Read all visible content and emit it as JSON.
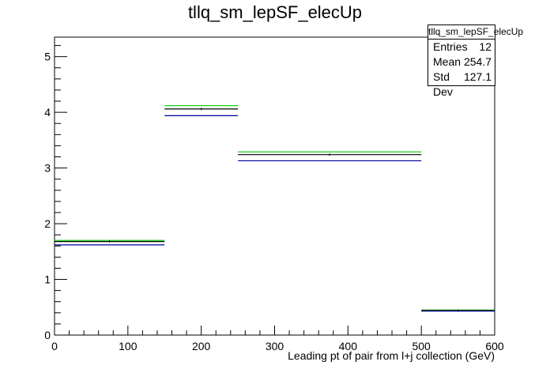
{
  "chart_data": {
    "type": "histogram",
    "title": "tllq_sm_lepSF_elecUp",
    "xlabel": "Leading pt of pair from l+j collection (GeV)",
    "ylabel": "",
    "xlim": [
      0,
      600
    ],
    "ylim": [
      0,
      5.35
    ],
    "x_ticks": [
      0,
      100,
      200,
      300,
      400,
      500,
      600
    ],
    "y_ticks": [
      0,
      1,
      2,
      3,
      4,
      5
    ],
    "bins": [
      [
        0,
        150
      ],
      [
        150,
        250
      ],
      [
        250,
        500
      ],
      [
        500,
        600
      ]
    ],
    "series": [
      {
        "color": "#00cc00",
        "values": [
          1.7,
          4.12,
          3.29,
          0.45
        ]
      },
      {
        "color": "#000000",
        "values": [
          1.68,
          4.06,
          3.24,
          0.44
        ]
      },
      {
        "color": "#000099",
        "values": [
          1.62,
          3.94,
          3.13,
          0.43
        ]
      }
    ],
    "legend": "none",
    "grid": false
  },
  "stats": {
    "name": "tllq_sm_lepSF_elecUp",
    "entries_label": "Entries",
    "entries_value": "12",
    "mean_label": "Mean",
    "mean_value": "254.7",
    "stddev_label": "Std Dev",
    "stddev_value": "127.1"
  }
}
